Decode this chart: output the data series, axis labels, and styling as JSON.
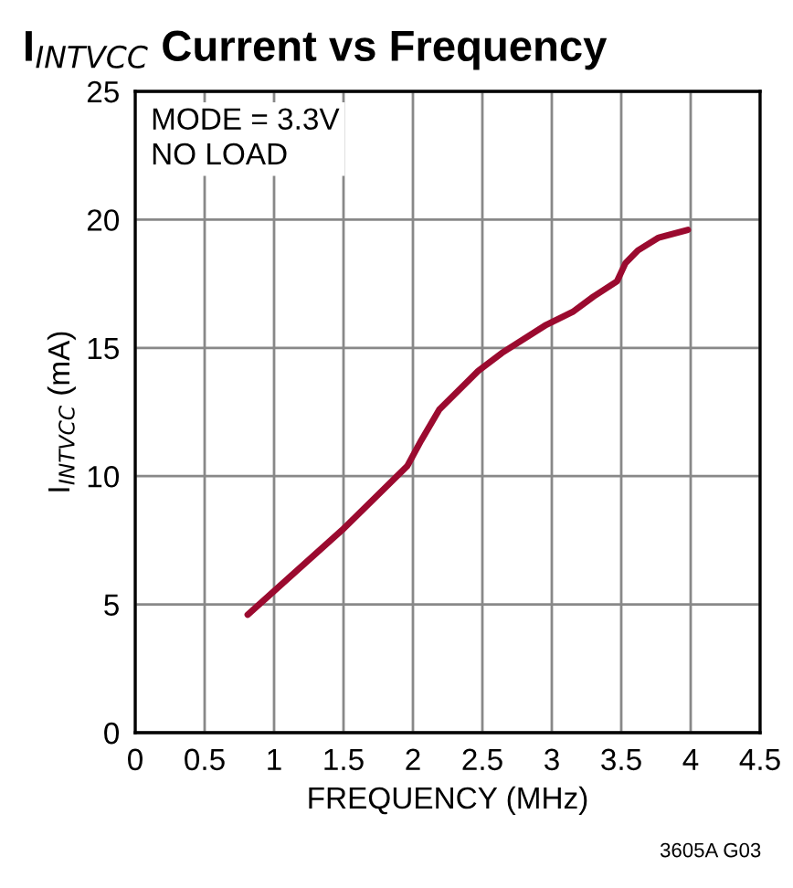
{
  "chart_data": {
    "type": "line",
    "title": "I$_{INTVCC}$ Current vs Frequency",
    "xlabel": "FREQUENCY (MHz)",
    "ylabel": "I$_{INTVCC}$ (mA)",
    "annotations": [
      "MODE = 3.3V\nNO LOAD",
      "3605A G03"
    ],
    "series": [
      {
        "color": "#9b0a2f",
        "x": [
          0.81,
          1.49,
          1.96,
          2.06,
          2.19,
          2.47,
          2.64,
          2.96,
          3.15,
          3.3,
          3.47,
          3.53,
          3.62,
          3.77,
          3.98
        ],
        "values": [
          4.6,
          7.9,
          10.4,
          11.4,
          12.6,
          14.1,
          14.8,
          15.9,
          16.4,
          17.0,
          17.6,
          18.3,
          18.8,
          19.3,
          19.6
        ]
      }
    ],
    "xlim": [
      0,
      4.5
    ],
    "xticks": [
      0,
      0.5,
      1,
      1.5,
      2,
      2.5,
      3,
      3.5,
      4,
      4.5
    ],
    "ylim": [
      0,
      25
    ],
    "yticks": [
      0,
      5,
      10,
      15,
      20,
      25
    ],
    "grid": true,
    "line_style": "solid",
    "marker": "none"
  }
}
